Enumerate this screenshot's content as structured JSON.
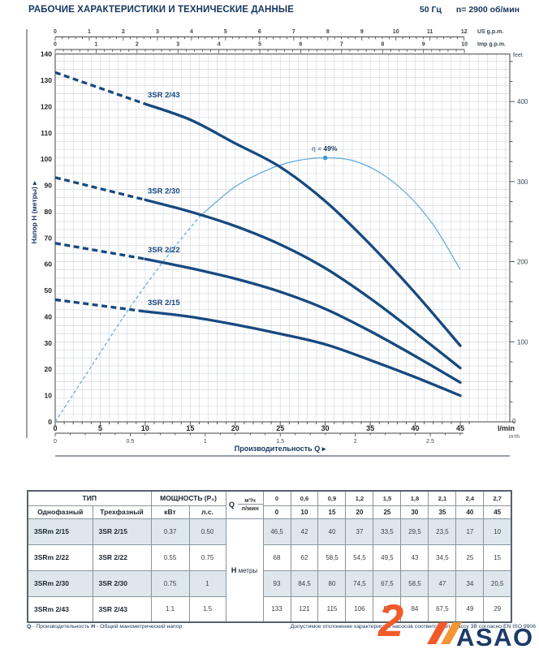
{
  "header": {
    "title": "РАБОЧИЕ ХАРАКТЕРИСТИКИ И ТЕХНИЧЕСКИЕ ДАННЫЕ",
    "frequency": "50 Гц",
    "speed": "n= 2900 об/мин"
  },
  "chart_data": {
    "type": "line",
    "x_axis_title": "Производительность Q  ▸",
    "y_axis_title": "Напор H (метры)  ▸",
    "x_unit_lmin": "l/min",
    "x_unit_m3h": "m³/h",
    "x_unit_usgpm": "US g.p.m.",
    "x_unit_impgpm": "Imp g.p.m.",
    "y_unit_right": "feet",
    "x_range_lmin": [
      0,
      45
    ],
    "y_range_m": [
      0,
      140
    ],
    "x_ticks_lmin": [
      0,
      5,
      10,
      15,
      20,
      25,
      30,
      35,
      40,
      45
    ],
    "y_ticks_m": [
      0,
      10,
      20,
      30,
      40,
      50,
      60,
      70,
      80,
      90,
      100,
      110,
      120,
      130,
      140
    ],
    "feet_labels": [
      100,
      200,
      300,
      400
    ],
    "m3h_ticks": [
      "0",
      "0.5",
      "1",
      "1.5",
      "2",
      "2.5"
    ],
    "usgpm_ticks": [
      0,
      1,
      2,
      3,
      4,
      5,
      6,
      7,
      8,
      9,
      10,
      11,
      12
    ],
    "impgpm_ticks": [
      0,
      1,
      2,
      3,
      4,
      5,
      6,
      7,
      8,
      9,
      10
    ],
    "grid": true,
    "q_lmin": [
      0,
      10,
      15,
      20,
      25,
      30,
      35,
      40,
      45
    ],
    "dashed_until_lmin": 10,
    "series": [
      {
        "name": "3SR 2/43",
        "h_m": [
          133,
          121,
          115,
          106,
          97,
          84,
          67.5,
          49,
          29
        ]
      },
      {
        "name": "3SR 2/30",
        "h_m": [
          93,
          84.5,
          80,
          74.5,
          67.5,
          58.5,
          47,
          34,
          20.5
        ]
      },
      {
        "name": "3SR 2/22",
        "h_m": [
          68,
          62,
          58.5,
          54.5,
          49.5,
          43,
          34.5,
          25,
          15
        ]
      },
      {
        "name": "3SR 2/15",
        "h_m": [
          46.5,
          42,
          40,
          37,
          33.5,
          29.5,
          23.5,
          17,
          10
        ]
      }
    ],
    "efficiency": {
      "label_prefix": "η = ",
      "label_value": "49%",
      "peak_q_h": [
        30,
        100.5
      ],
      "dash_until_lmin": 16,
      "points_q_h": [
        [
          0,
          0
        ],
        [
          4,
          21
        ],
        [
          8,
          42
        ],
        [
          12,
          61
        ],
        [
          16,
          78
        ],
        [
          20,
          89.5
        ],
        [
          24,
          96.5
        ],
        [
          27,
          99.5
        ],
        [
          30,
          100.5
        ],
        [
          33,
          99.5
        ],
        [
          36,
          95
        ],
        [
          39,
          87
        ],
        [
          42,
          75
        ],
        [
          45,
          58
        ]
      ]
    }
  },
  "table": {
    "type_header": "ТИП",
    "power_header": "МОЩНОСТЬ (P₂)",
    "col_single": "Однофазный",
    "col_three": "Трехфазный",
    "col_kw": "кВт",
    "col_hp": "л.с.",
    "q_letter": "Q",
    "q_unit_top": "м³/ч",
    "q_unit_bottom": "л/мин",
    "h_letter": "H",
    "h_unit": "метры",
    "q_m3h": [
      "0",
      "0,6",
      "0,9",
      "1,2",
      "1,5",
      "1,8",
      "2,1",
      "2,4",
      "2,7"
    ],
    "q_lmin": [
      "0",
      "10",
      "15",
      "20",
      "25",
      "30",
      "35",
      "40",
      "45"
    ],
    "rows": [
      {
        "mono": "3SRm 2/15",
        "three": "3SR 2/15",
        "kw": "0.37",
        "hp": "0.50",
        "h": [
          "46,5",
          "42",
          "40",
          "37",
          "33,5",
          "29,5",
          "23,5",
          "17",
          "10"
        ]
      },
      {
        "mono": "3SRm 2/22",
        "three": "3SR 2/22",
        "kw": "0.55",
        "hp": "0.75",
        "h": [
          "68",
          "62",
          "58,5",
          "54,5",
          "49,5",
          "43",
          "34,5",
          "25",
          "15"
        ]
      },
      {
        "mono": "3SRm 2/30",
        "three": "3SR 2/30",
        "kw": "0.75",
        "hp": "1",
        "h": [
          "93",
          "84,5",
          "80",
          "74,5",
          "67,5",
          "58,5",
          "47",
          "34",
          "20,5"
        ]
      },
      {
        "mono": "3SRm 2/43",
        "three": "3SR 2/43",
        "kw": "1.1",
        "hp": "1.5",
        "h": [
          "133",
          "121",
          "115",
          "106",
          "97",
          "84",
          "67,5",
          "49",
          "29"
        ]
      }
    ]
  },
  "footnotes": {
    "q_bold": "Q",
    "q_text": " - Производительность   ",
    "h_bold": "H",
    "h_text": " - Общий манометрический напор",
    "tolerance": "Допустимое отклонение характеристик насосов соответствует классу 3B согласно EN ISO 9906"
  },
  "logo": {
    "numeral": "2",
    "text": "ASAO"
  },
  "colors": {
    "navy": "#17365d",
    "curve": "#17497f",
    "efficiency": "#5fa8d8",
    "grid": "#cfd4d8",
    "frame": "#5a6570",
    "accent_orange": "#f15a29",
    "stripe_orange": "#f79433",
    "logo_navy": "#1b3a67",
    "table_shade": "#dee8ec"
  }
}
